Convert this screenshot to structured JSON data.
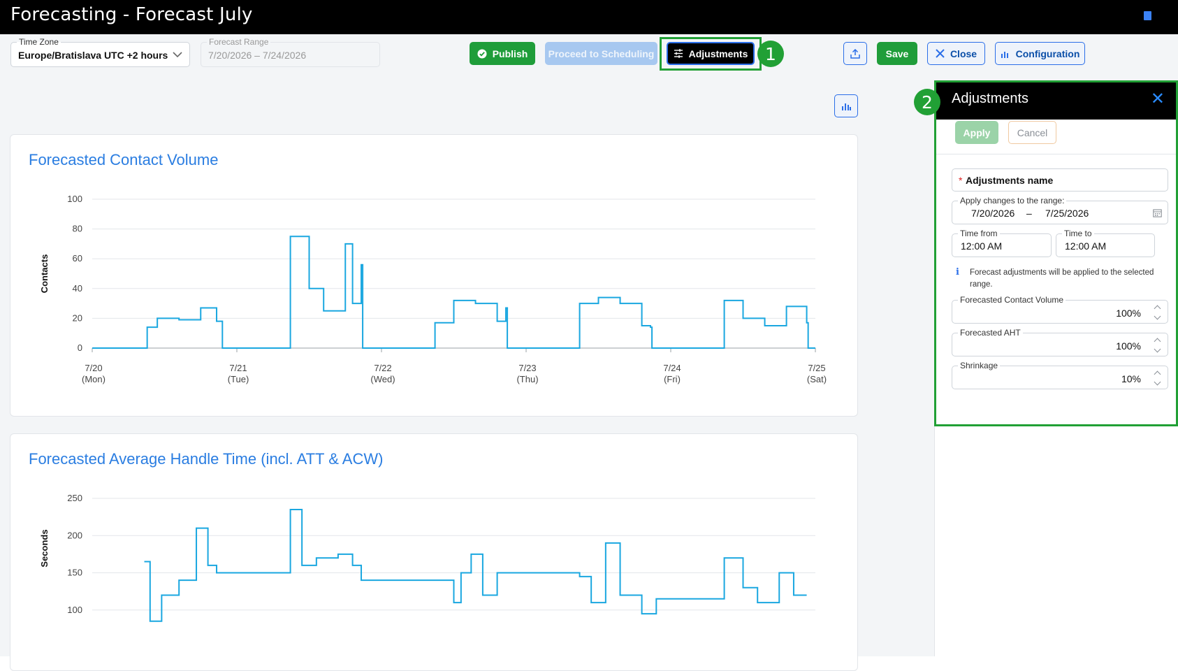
{
  "header": {
    "title": "Forecasting - Forecast July"
  },
  "toolbar": {
    "timezone": {
      "label": "Time Zone",
      "value": "Europe/Bratislava UTC +2 hours"
    },
    "forecast_range": {
      "label": "Forecast Range",
      "value": "7/20/2026 – 7/24/2026"
    },
    "publish": "Publish",
    "proceed": "Proceed to Scheduling",
    "adjustments": "Adjustments",
    "save": "Save",
    "close": "Close",
    "configuration": "Configuration"
  },
  "annotations": {
    "one": "1",
    "two": "2"
  },
  "charts": [
    {
      "title": "Forecasted Contact Volume",
      "ylabel": "Contacts",
      "yticks": [
        "100",
        "80",
        "60",
        "40",
        "20",
        "0"
      ],
      "xticks": [
        {
          "date": "7/20",
          "day": "(Mon)"
        },
        {
          "date": "7/21",
          "day": "(Tue)"
        },
        {
          "date": "7/22",
          "day": "(Wed)"
        },
        {
          "date": "7/23",
          "day": "(Thu)"
        },
        {
          "date": "7/24",
          "day": "(Fri)"
        },
        {
          "date": "7/25",
          "day": "(Sat)"
        }
      ]
    },
    {
      "title": "Forecasted Average Handle Time (incl. ATT & ACW)",
      "ylabel": "Seconds",
      "yticks": [
        "250",
        "200",
        "150",
        "100"
      ]
    }
  ],
  "chart_data": [
    {
      "type": "line",
      "title": "Forecasted Contact Volume",
      "ylabel": "Contacts",
      "ylim": [
        0,
        100
      ],
      "x_range": [
        "7/20",
        "7/25"
      ],
      "x": [
        0,
        0.36,
        0.38,
        0.45,
        0.6,
        0.75,
        0.86,
        0.9,
        0.91,
        1.36,
        1.37,
        1.5,
        1.6,
        1.75,
        1.8,
        1.86,
        1.87,
        2.36,
        2.37,
        2.5,
        2.65,
        2.8,
        2.86,
        2.87,
        3.36,
        3.37,
        3.5,
        3.65,
        3.8,
        3.86,
        3.87,
        4.36,
        4.37,
        4.5,
        4.65,
        4.8,
        4.94,
        4.95,
        5.0
      ],
      "series": [
        {
          "color": "#1aa7e0",
          "values": [
            0,
            0,
            14,
            20,
            19,
            27,
            18,
            0,
            0,
            0,
            75,
            40,
            25,
            70,
            30,
            56,
            0,
            0,
            17,
            32,
            30,
            18,
            27,
            0,
            0,
            30,
            34,
            30,
            15,
            14,
            0,
            0,
            32,
            20,
            15,
            28,
            17,
            0,
            0
          ]
        }
      ]
    },
    {
      "type": "line",
      "title": "Forecasted Average Handle Time (incl. ATT & ACW)",
      "ylabel": "Seconds",
      "x_range": [
        "7/20",
        "7/25"
      ],
      "visible_ylim": [
        80,
        250
      ],
      "x": [
        0.36,
        0.4,
        0.48,
        0.6,
        0.72,
        0.8,
        0.86,
        1.37,
        1.45,
        1.55,
        1.7,
        1.8,
        1.86,
        2.5,
        2.55,
        2.62,
        2.7,
        2.8,
        2.86,
        3.37,
        3.45,
        3.55,
        3.65,
        3.8,
        3.9,
        4.37,
        4.5,
        4.6,
        4.75,
        4.85,
        4.94
      ],
      "series": [
        {
          "color": "#1aa7e0",
          "values": [
            165,
            85,
            120,
            140,
            210,
            160,
            150,
            235,
            160,
            170,
            175,
            160,
            140,
            110,
            150,
            175,
            120,
            150,
            150,
            145,
            110,
            190,
            120,
            95,
            115,
            170,
            130,
            110,
            150,
            120,
            120
          ]
        }
      ]
    }
  ],
  "panel": {
    "title": "Adjustments",
    "apply": "Apply",
    "cancel": "Cancel",
    "name_required": "*",
    "name_label": "Adjustments name",
    "range_label": "Apply changes to the range:",
    "range_from": "7/20/2026",
    "range_sep": "–",
    "range_to": "7/25/2026",
    "time_from_label": "Time from",
    "time_from": "12:00 AM",
    "time_to_label": "Time to",
    "time_to": "12:00 AM",
    "info": "Forecast adjustments will be applied to the selected range.",
    "fcv_label": "Forecasted Contact Volume",
    "fcv_value": "100%",
    "aht_label": "Forecasted AHT",
    "aht_value": "100%",
    "shrink_label": "Shrinkage",
    "shrink_value": "10%"
  },
  "colors": {
    "accent_green": "#21a035",
    "line": "#1aa7e0",
    "title_blue": "#2a7de1"
  },
  "icons": [
    "check-circle-icon",
    "sliders-icon",
    "export-icon",
    "close-icon",
    "bar-chart-icon",
    "calendar-icon",
    "info-icon",
    "chevron-down-icon",
    "book-icon"
  ]
}
